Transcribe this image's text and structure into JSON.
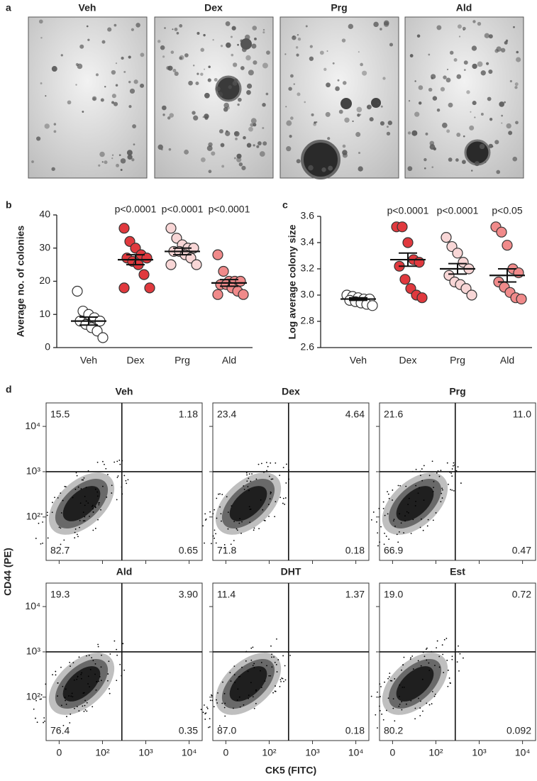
{
  "panel_labels": [
    "a",
    "b",
    "c",
    "d"
  ],
  "images": {
    "titles": [
      "Veh",
      "Dex",
      "Prg",
      "Ald"
    ]
  },
  "chart_data": [
    {
      "type": "strip",
      "ylabel": "Average no. of colonies",
      "categories": [
        "Veh",
        "Dex",
        "Prg",
        "Ald"
      ],
      "colors": [
        "#ffffff",
        "#e0393e",
        "#f8d6d6",
        "#f08a8a"
      ],
      "points": [
        [
          17,
          11,
          10,
          9,
          8,
          8,
          7,
          6,
          5,
          3
        ],
        [
          36,
          32,
          30,
          28,
          27,
          27,
          26,
          25,
          22,
          18,
          18
        ],
        [
          36,
          33,
          31,
          30,
          30,
          29,
          29,
          28,
          27,
          25,
          25
        ],
        [
          28,
          23,
          20,
          20,
          20,
          19,
          19,
          18,
          17,
          16,
          16
        ]
      ],
      "means": [
        8,
        26.5,
        29,
        19.5
      ],
      "sems": [
        1.2,
        1.5,
        1,
        1
      ],
      "annotations": [
        null,
        "p<0.0001",
        "p<0.0001",
        "p<0.0001"
      ],
      "ylim": [
        0,
        40
      ],
      "yticks": [
        0,
        10,
        20,
        30,
        40
      ]
    },
    {
      "type": "strip",
      "ylabel": "Log average colony size",
      "categories": [
        "Veh",
        "Dex",
        "Prg",
        "Ald"
      ],
      "colors": [
        "#ffffff",
        "#e0393e",
        "#f8d6d6",
        "#f08a8a"
      ],
      "points": [
        [
          3.0,
          2.99,
          2.98,
          2.97,
          2.97,
          2.96,
          2.95,
          2.94,
          2.93,
          2.92
        ],
        [
          3.52,
          3.52,
          3.4,
          3.27,
          3.25,
          3.22,
          3.12,
          3.05,
          3.0,
          2.98
        ],
        [
          3.44,
          3.37,
          3.32,
          3.25,
          3.2,
          3.15,
          3.1,
          3.08,
          3.05,
          3.0
        ],
        [
          3.52,
          3.48,
          3.38,
          3.2,
          3.17,
          3.1,
          3.06,
          3.02,
          2.98,
          2.97
        ]
      ],
      "means": [
        2.97,
        3.27,
        3.2,
        3.15
      ],
      "sems": [
        0.01,
        0.05,
        0.04,
        0.05
      ],
      "annotations": [
        null,
        "p<0.0001",
        "p<0.0001",
        "p<0.05"
      ],
      "ylim": [
        2.6,
        3.6
      ],
      "yticks": [
        2.6,
        2.8,
        {
          "value": 3,
          "label": "3.0"
        },
        3.2,
        3.4,
        3.6
      ]
    },
    {
      "type": "quadrant",
      "xlabel": "CK5 (FITC)",
      "ylabel": "CD44 (PE)",
      "log_scale": true,
      "xlim": [
        5,
        20000
      ],
      "ylim": [
        11,
        33000
      ],
      "xticks": [
        0,
        {
          "value": 100,
          "label": "10²"
        },
        {
          "value": 1000,
          "label": "10³"
        },
        {
          "value": 10000,
          "label": "10⁴"
        }
      ],
      "yticks": [
        {
          "value": 100,
          "label": "10²"
        },
        {
          "value": 1000,
          "label": "10³"
        },
        {
          "value": 10000,
          "label": "10⁴"
        }
      ],
      "xgate": 280,
      "ygate": 1000,
      "plots": [
        {
          "title": "Veh",
          "values": [
            15.5,
            1.18,
            82.7,
            0.65
          ],
          "value_labels": [
            "15.5",
            "1.18",
            "82.7",
            "0.65"
          ]
        },
        {
          "title": "Dex",
          "values": [
            23.4,
            4.64,
            71.8,
            0.18
          ],
          "value_labels": [
            "23.4",
            "4.64",
            "71.8",
            "0.18"
          ]
        },
        {
          "title": "Prg",
          "values": [
            21.6,
            11,
            66.9,
            0.47
          ],
          "value_labels": [
            "21.6",
            "11.0",
            "66.9",
            "0.47"
          ]
        },
        {
          "title": "Ald",
          "values": [
            19.3,
            3.9,
            76.4,
            0.35
          ],
          "value_labels": [
            "19.3",
            "3.90",
            "76.4",
            "0.35"
          ]
        },
        {
          "title": "DHT",
          "values": [
            11.4,
            1.37,
            87,
            0.18
          ],
          "value_labels": [
            "11.4",
            "1.37",
            "87.0",
            "0.18"
          ]
        },
        {
          "title": "Est",
          "values": [
            19,
            0.72,
            80.2,
            0.092
          ],
          "value_labels": [
            "19.0",
            "0.72",
            "80.2",
            "0.092"
          ]
        }
      ]
    }
  ]
}
